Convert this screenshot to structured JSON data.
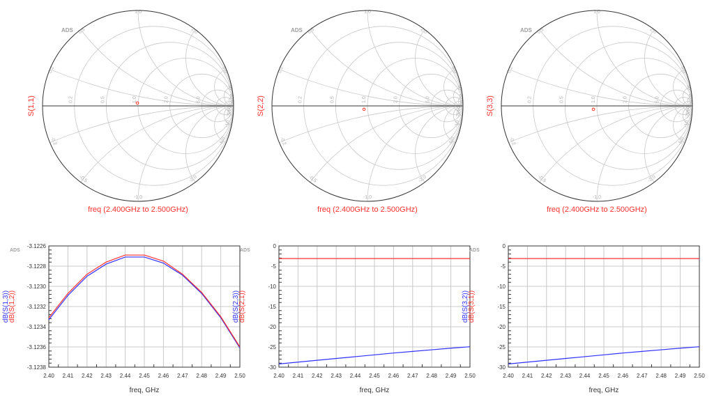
{
  "colors": {
    "red": "#ff3030",
    "blue": "#3030ff",
    "grid": "#c8c8c8",
    "axis": "#333333",
    "watermark": "#a0a0a0"
  },
  "watermark": "ADS",
  "smith": {
    "r_circles": [
      0.2,
      0.5,
      1.0,
      2.0,
      5.0,
      10,
      20,
      50
    ],
    "x_arcs": [
      0.2,
      0.5,
      1.0,
      2.0,
      5.0,
      10,
      20,
      50
    ],
    "r_labels": [
      "0.2",
      "0.5",
      "1.0",
      "2.0",
      "5.0",
      "10",
      "20",
      "50"
    ],
    "x_labels": [
      "0.2",
      "0.5",
      "1.0",
      "2.0",
      "5.0",
      "10",
      "20",
      "50"
    ]
  },
  "chart_data": [
    {
      "type": "smith",
      "trace": "S(1,1)",
      "sweep_label": "freq (2.400GHz to 2.500GHz)",
      "points": [
        {
          "re": -0.007,
          "im": 0.03
        }
      ]
    },
    {
      "type": "smith",
      "trace": "S(2,2)",
      "sweep_label": "freq (2.400GHz to 2.500GHz)",
      "points": [
        {
          "re": -0.036,
          "im": -0.036
        }
      ]
    },
    {
      "type": "smith",
      "trace": "S(3,3)",
      "sweep_label": "freq (2.400GHz to 2.500GHz)",
      "points": [
        {
          "re": -0.036,
          "im": -0.036
        }
      ]
    },
    {
      "type": "line",
      "xlabel": "freq, GHz",
      "xlim": [
        2.4,
        2.5
      ],
      "ylim": [
        -3.1238,
        -3.1226
      ],
      "xticks": [
        "2.40",
        "2.41",
        "2.42",
        "2.43",
        "2.44",
        "2.45",
        "2.46",
        "2.47",
        "2.48",
        "2.49",
        "2.50"
      ],
      "yticks": [
        "-3.1238",
        "-3.1236",
        "-3.1234",
        "-3.1232",
        "-3.1230",
        "-3.1228",
        "-3.1226"
      ],
      "x": [
        2.4,
        2.41,
        2.42,
        2.43,
        2.44,
        2.45,
        2.46,
        2.47,
        2.48,
        2.49,
        2.5
      ],
      "series": [
        {
          "name": "dB(S(1,3))",
          "color": "blue",
          "values": [
            -3.12333,
            -3.12309,
            -3.1229,
            -3.12278,
            -3.12271,
            -3.12271,
            -3.12277,
            -3.12289,
            -3.12307,
            -3.12331,
            -3.12361
          ]
        },
        {
          "name": "dB(S(1,2))",
          "color": "red",
          "values": [
            -3.12331,
            -3.12307,
            -3.12288,
            -3.12276,
            -3.12269,
            -3.12269,
            -3.12275,
            -3.12288,
            -3.12306,
            -3.1233,
            -3.1236
          ]
        }
      ]
    },
    {
      "type": "line",
      "xlabel": "freq, GHz",
      "xlim": [
        2.4,
        2.5
      ],
      "ylim": [
        -30,
        0
      ],
      "xticks": [
        "2.40",
        "2.41",
        "2.42",
        "2.43",
        "2.44",
        "2.45",
        "2.46",
        "2.47",
        "2.48",
        "2.49",
        "2.50"
      ],
      "yticks": [
        "-30",
        "-25",
        "-20",
        "-15",
        "-10",
        "-5",
        "0"
      ],
      "x": [
        2.4,
        2.41,
        2.42,
        2.43,
        2.44,
        2.45,
        2.46,
        2.47,
        2.48,
        2.49,
        2.5
      ],
      "series": [
        {
          "name": "dB(S(2,3))",
          "color": "blue",
          "values": [
            -29.2,
            -28.75,
            -28.3,
            -27.85,
            -27.4,
            -26.95,
            -26.5,
            -26.1,
            -25.7,
            -25.3,
            -24.95
          ]
        },
        {
          "name": "dB(S(2,1))",
          "color": "red",
          "values": [
            -3.12,
            -3.12,
            -3.12,
            -3.12,
            -3.12,
            -3.12,
            -3.12,
            -3.12,
            -3.12,
            -3.12,
            -3.12
          ]
        }
      ]
    },
    {
      "type": "line",
      "xlabel": "freq, GHz",
      "xlim": [
        2.4,
        2.5
      ],
      "ylim": [
        -30,
        0
      ],
      "xticks": [
        "2.40",
        "2.41",
        "2.42",
        "2.43",
        "2.44",
        "2.45",
        "2.46",
        "2.47",
        "2.48",
        "2.49",
        "2.50"
      ],
      "yticks": [
        "-30",
        "-25",
        "-20",
        "-15",
        "-10",
        "-5",
        "0"
      ],
      "x": [
        2.4,
        2.41,
        2.42,
        2.43,
        2.44,
        2.45,
        2.46,
        2.47,
        2.48,
        2.49,
        2.5
      ],
      "series": [
        {
          "name": "dB(S(3,2))",
          "color": "blue",
          "values": [
            -29.2,
            -28.75,
            -28.3,
            -27.85,
            -27.4,
            -26.95,
            -26.5,
            -26.1,
            -25.7,
            -25.3,
            -24.95
          ]
        },
        {
          "name": "dB(S(3,1))",
          "color": "red",
          "values": [
            -3.12,
            -3.12,
            -3.12,
            -3.12,
            -3.12,
            -3.12,
            -3.12,
            -3.12,
            -3.12,
            -3.12,
            -3.12
          ]
        }
      ]
    }
  ]
}
